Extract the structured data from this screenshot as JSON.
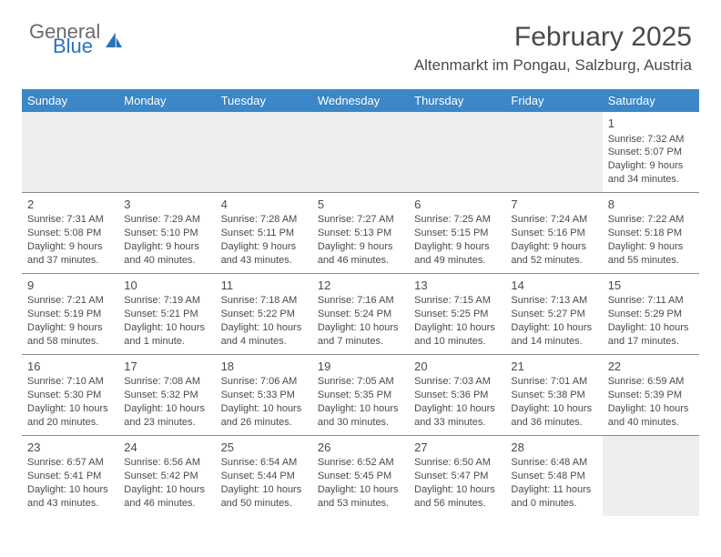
{
  "brand": {
    "general": "General",
    "blue": "Blue"
  },
  "title": "February 2025",
  "location": "Altenmarkt im Pongau, Salzburg, Austria",
  "colors": {
    "header_bar": "#3b87c8",
    "brand_blue": "#2a73b8",
    "text": "#4a4a4a",
    "empty_bg": "#eeeeee",
    "border": "#888888"
  },
  "day_names": [
    "Sunday",
    "Monday",
    "Tuesday",
    "Wednesday",
    "Thursday",
    "Friday",
    "Saturday"
  ],
  "weeks": [
    [
      null,
      null,
      null,
      null,
      null,
      null,
      {
        "n": "1",
        "sr": "Sunrise: 7:32 AM",
        "ss": "Sunset: 5:07 PM",
        "dl": "Daylight: 9 hours and 34 minutes."
      }
    ],
    [
      {
        "n": "2",
        "sr": "Sunrise: 7:31 AM",
        "ss": "Sunset: 5:08 PM",
        "dl": "Daylight: 9 hours and 37 minutes."
      },
      {
        "n": "3",
        "sr": "Sunrise: 7:29 AM",
        "ss": "Sunset: 5:10 PM",
        "dl": "Daylight: 9 hours and 40 minutes."
      },
      {
        "n": "4",
        "sr": "Sunrise: 7:28 AM",
        "ss": "Sunset: 5:11 PM",
        "dl": "Daylight: 9 hours and 43 minutes."
      },
      {
        "n": "5",
        "sr": "Sunrise: 7:27 AM",
        "ss": "Sunset: 5:13 PM",
        "dl": "Daylight: 9 hours and 46 minutes."
      },
      {
        "n": "6",
        "sr": "Sunrise: 7:25 AM",
        "ss": "Sunset: 5:15 PM",
        "dl": "Daylight: 9 hours and 49 minutes."
      },
      {
        "n": "7",
        "sr": "Sunrise: 7:24 AM",
        "ss": "Sunset: 5:16 PM",
        "dl": "Daylight: 9 hours and 52 minutes."
      },
      {
        "n": "8",
        "sr": "Sunrise: 7:22 AM",
        "ss": "Sunset: 5:18 PM",
        "dl": "Daylight: 9 hours and 55 minutes."
      }
    ],
    [
      {
        "n": "9",
        "sr": "Sunrise: 7:21 AM",
        "ss": "Sunset: 5:19 PM",
        "dl": "Daylight: 9 hours and 58 minutes."
      },
      {
        "n": "10",
        "sr": "Sunrise: 7:19 AM",
        "ss": "Sunset: 5:21 PM",
        "dl": "Daylight: 10 hours and 1 minute."
      },
      {
        "n": "11",
        "sr": "Sunrise: 7:18 AM",
        "ss": "Sunset: 5:22 PM",
        "dl": "Daylight: 10 hours and 4 minutes."
      },
      {
        "n": "12",
        "sr": "Sunrise: 7:16 AM",
        "ss": "Sunset: 5:24 PM",
        "dl": "Daylight: 10 hours and 7 minutes."
      },
      {
        "n": "13",
        "sr": "Sunrise: 7:15 AM",
        "ss": "Sunset: 5:25 PM",
        "dl": "Daylight: 10 hours and 10 minutes."
      },
      {
        "n": "14",
        "sr": "Sunrise: 7:13 AM",
        "ss": "Sunset: 5:27 PM",
        "dl": "Daylight: 10 hours and 14 minutes."
      },
      {
        "n": "15",
        "sr": "Sunrise: 7:11 AM",
        "ss": "Sunset: 5:29 PM",
        "dl": "Daylight: 10 hours and 17 minutes."
      }
    ],
    [
      {
        "n": "16",
        "sr": "Sunrise: 7:10 AM",
        "ss": "Sunset: 5:30 PM",
        "dl": "Daylight: 10 hours and 20 minutes."
      },
      {
        "n": "17",
        "sr": "Sunrise: 7:08 AM",
        "ss": "Sunset: 5:32 PM",
        "dl": "Daylight: 10 hours and 23 minutes."
      },
      {
        "n": "18",
        "sr": "Sunrise: 7:06 AM",
        "ss": "Sunset: 5:33 PM",
        "dl": "Daylight: 10 hours and 26 minutes."
      },
      {
        "n": "19",
        "sr": "Sunrise: 7:05 AM",
        "ss": "Sunset: 5:35 PM",
        "dl": "Daylight: 10 hours and 30 minutes."
      },
      {
        "n": "20",
        "sr": "Sunrise: 7:03 AM",
        "ss": "Sunset: 5:36 PM",
        "dl": "Daylight: 10 hours and 33 minutes."
      },
      {
        "n": "21",
        "sr": "Sunrise: 7:01 AM",
        "ss": "Sunset: 5:38 PM",
        "dl": "Daylight: 10 hours and 36 minutes."
      },
      {
        "n": "22",
        "sr": "Sunrise: 6:59 AM",
        "ss": "Sunset: 5:39 PM",
        "dl": "Daylight: 10 hours and 40 minutes."
      }
    ],
    [
      {
        "n": "23",
        "sr": "Sunrise: 6:57 AM",
        "ss": "Sunset: 5:41 PM",
        "dl": "Daylight: 10 hours and 43 minutes."
      },
      {
        "n": "24",
        "sr": "Sunrise: 6:56 AM",
        "ss": "Sunset: 5:42 PM",
        "dl": "Daylight: 10 hours and 46 minutes."
      },
      {
        "n": "25",
        "sr": "Sunrise: 6:54 AM",
        "ss": "Sunset: 5:44 PM",
        "dl": "Daylight: 10 hours and 50 minutes."
      },
      {
        "n": "26",
        "sr": "Sunrise: 6:52 AM",
        "ss": "Sunset: 5:45 PM",
        "dl": "Daylight: 10 hours and 53 minutes."
      },
      {
        "n": "27",
        "sr": "Sunrise: 6:50 AM",
        "ss": "Sunset: 5:47 PM",
        "dl": "Daylight: 10 hours and 56 minutes."
      },
      {
        "n": "28",
        "sr": "Sunrise: 6:48 AM",
        "ss": "Sunset: 5:48 PM",
        "dl": "Daylight: 11 hours and 0 minutes."
      },
      null
    ]
  ]
}
